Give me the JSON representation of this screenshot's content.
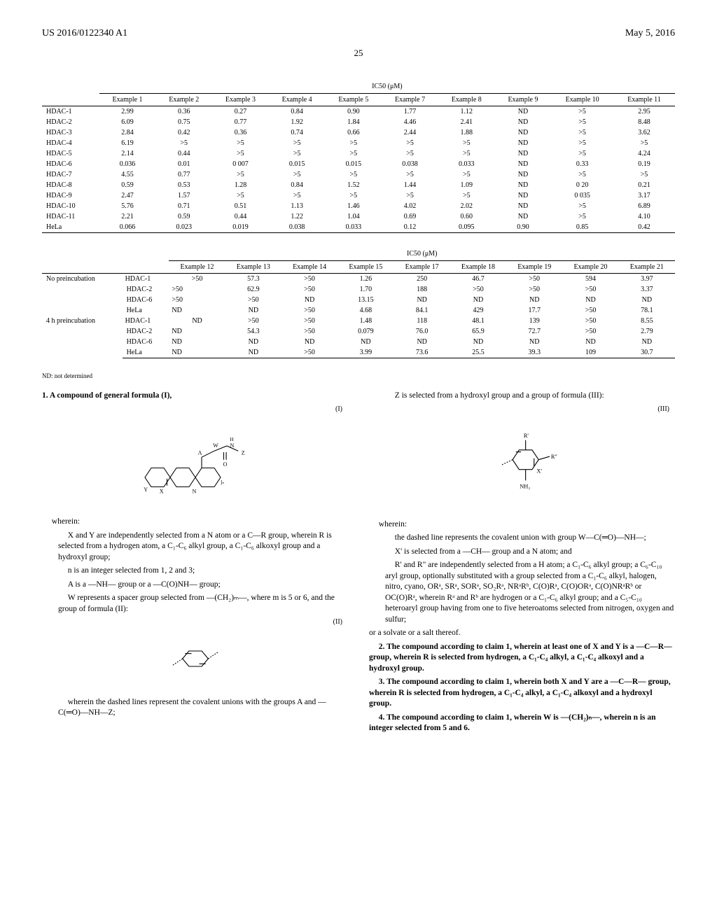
{
  "header": {
    "pub_num": "US 2016/0122340 A1",
    "date": "May 5, 2016",
    "page": "25"
  },
  "table1": {
    "metric": "IC50 (μM)",
    "columns": [
      "Example 1",
      "Example 2",
      "Example 3",
      "Example 4",
      "Example 5",
      "Example 7",
      "Example 8",
      "Example 9",
      "Example 10",
      "Example 11"
    ],
    "rows": [
      {
        "label": "HDAC-1",
        "v": [
          "2.99",
          "0.36",
          "0.27",
          "0.84",
          "0.90",
          "1.77",
          "1.12",
          "ND",
          ">5",
          "2.95"
        ]
      },
      {
        "label": "HDAC-2",
        "v": [
          "6.09",
          "0.75",
          "0.77",
          "1.92",
          "1.84",
          "4.46",
          "2.41",
          "ND",
          ">5",
          "8.48"
        ]
      },
      {
        "label": "HDAC-3",
        "v": [
          "2.84",
          "0.42",
          "0.36",
          "0.74",
          "0.66",
          "2.44",
          "1.88",
          "ND",
          ">5",
          "3.62"
        ]
      },
      {
        "label": "HDAC-4",
        "v": [
          "6.19",
          ">5",
          ">5",
          ">5",
          ">5",
          ">5",
          ">5",
          "ND",
          ">5",
          ">5"
        ]
      },
      {
        "label": "HDAC-5",
        "v": [
          "2.14",
          "0.44",
          ">5",
          ">5",
          ">5",
          ">5",
          ">5",
          "ND",
          ">5",
          "4.24"
        ]
      },
      {
        "label": "HDAC-6",
        "v": [
          "0.036",
          "0.01",
          "0 007",
          "0.015",
          "0.015",
          "0.038",
          "0.033",
          "ND",
          "0.33",
          "0.19"
        ]
      },
      {
        "label": "HDAC-7",
        "v": [
          "4.55",
          "0.77",
          ">5",
          ">5",
          ">5",
          ">5",
          ">5",
          "ND",
          ">5",
          ">5"
        ]
      },
      {
        "label": "HDAC-8",
        "v": [
          "0.59",
          "0.53",
          "1.28",
          "0.84",
          "1.52",
          "1.44",
          "1.09",
          "ND",
          "0 20",
          "0.21"
        ]
      },
      {
        "label": "HDAC-9",
        "v": [
          "2.47",
          "1.57",
          ">5",
          ">5",
          ">5",
          ">5",
          ">5",
          "ND",
          "0 035",
          "3.17"
        ]
      },
      {
        "label": "HDAC-10",
        "v": [
          "5.76",
          "0.71",
          "0.51",
          "1.13",
          "1.46",
          "4.02",
          "2.02",
          "ND",
          ">5",
          "6.89"
        ]
      },
      {
        "label": "HDAC-11",
        "v": [
          "2.21",
          "0.59",
          "0.44",
          "1.22",
          "1.04",
          "0.69",
          "0.60",
          "ND",
          ">5",
          "4.10"
        ]
      },
      {
        "label": "HeLa",
        "v": [
          "0.066",
          "0.023",
          "0.019",
          "0.038",
          "0.033",
          "0.12",
          "0.095",
          "0.90",
          "0.85",
          "0.42"
        ]
      }
    ]
  },
  "table2": {
    "metric": "IC50 (μM)",
    "columns": [
      "Example 12",
      "Example 13",
      "Example 14",
      "Example 15",
      "Example 17",
      "Example 18",
      "Example 19",
      "Example 20",
      "Example 21"
    ],
    "groups": [
      {
        "label": "No preincubation",
        "rows": [
          {
            "label": "HDAC-1",
            "v": [
              ">50",
              "57.3",
              ">50",
              "1.26",
              "250",
              "46.7",
              ">50",
              "594",
              "3.97"
            ]
          },
          {
            "label": "HDAC-2",
            "v": [
              ">50",
              "62.9",
              ">50",
              "1.70",
              "188",
              ">50",
              ">50",
              ">50",
              "3.37"
            ]
          },
          {
            "label": "HDAC-6",
            "v": [
              ">50",
              ">50",
              "ND",
              "13.15",
              "ND",
              "ND",
              "ND",
              "ND",
              "ND"
            ]
          },
          {
            "label": "HeLa",
            "v": [
              "ND",
              "ND",
              ">50",
              "4.68",
              "84.1",
              "429",
              "17.7",
              ">50",
              "78.1"
            ]
          }
        ]
      },
      {
        "label": "4 h preincubation",
        "rows": [
          {
            "label": "HDAC-1",
            "v": [
              "ND",
              ">50",
              ">50",
              "1.48",
              "118",
              "48.1",
              "139",
              ">50",
              "8.55"
            ]
          },
          {
            "label": "HDAC-2",
            "v": [
              "ND",
              "54.3",
              ">50",
              "0.079",
              "76.0",
              "65.9",
              "72.7",
              ">50",
              "2.79"
            ]
          },
          {
            "label": "HDAC-6",
            "v": [
              "ND",
              "ND",
              "ND",
              "ND",
              "ND",
              "ND",
              "ND",
              "ND",
              "ND"
            ]
          },
          {
            "label": "HeLa",
            "v": [
              "ND",
              "ND",
              ">50",
              "3.99",
              "73.6",
              "25.5",
              "39.3",
              "109",
              "30.7"
            ]
          }
        ]
      }
    ]
  },
  "footnote": "ND: not determined",
  "claims": {
    "c1_intro": "1. A compound of general formula (I),",
    "wherein": "wherein:",
    "xy": "X and Y are independently selected from a N atom or a C—R group, wherein R is selected from a hydrogen atom, a C₁-C₆ alkyl group, a C₁-C₆ alkoxyl group and a hydroxyl group;",
    "n": "n is an integer selected from 1, 2 and 3;",
    "a": "A is a —NH— group or a —C(O)NH— group;",
    "w": "W represents a spacer group selected from —(CH₂)ₘ—, where m is 5 or 6, and the group of formula (II):",
    "f2_note": "wherein the dashed lines represent the covalent unions with the groups A and —C(═O)—NH—Z;",
    "z": "Z is selected from a hydroxyl group and a group of formula (III):",
    "f3_wherein": "wherein:",
    "f3_dash": "the dashed line represents the covalent union with group W—C(═O)—NH—;",
    "f3_x": "X' is selected from a —CH— group and a N atom; and",
    "f3_r": "R' and R\" are independently selected from a H atom; a C₁-C₆ alkyl group; a C₆-C₁₀ aryl group, optionally substituted with a group selected from a C₁-C₆ alkyl, halogen, nitro, cyano, ORᵃ, SRᵃ, SORᵃ, SO₂Rᵃ, NRᵃRᵇ, C(O)Rᵃ, C(O)ORᵃ, C(O)NRᵃRᵇ or OC(O)Rᵃ, wherein Rᵃ and Rᵇ are hydrogen or a C₁-C₆ alkyl group; and a C₅-C₁₀ heteroaryl group having from one to five heteroatoms selected from nitrogen, oxygen and sulfur;",
    "solvate": "or a solvate or a salt thereof.",
    "c2": "2. The compound according to claim 1, wherein at least one of X and Y is a —C—R— group, wherein R is selected from hydrogen, a C₁-C₄ alkyl, a C₁-C₄ alkoxyl and a hydroxyl group.",
    "c3": "3. The compound according to claim 1, wherein both X and Y are a —C—R— group, wherein R is selected from hydrogen, a C₁-C₄ alkyl, a C₁-C₄ alkoxyl and a hydroxyl group.",
    "c4": "4. The compound according to claim 1, wherein W is —(CH₂)ₙ—, wherein n is an integer selected from 5 and 6."
  },
  "formula_labels": {
    "f1": "(I)",
    "f2": "(II)",
    "f3": "(III)"
  }
}
